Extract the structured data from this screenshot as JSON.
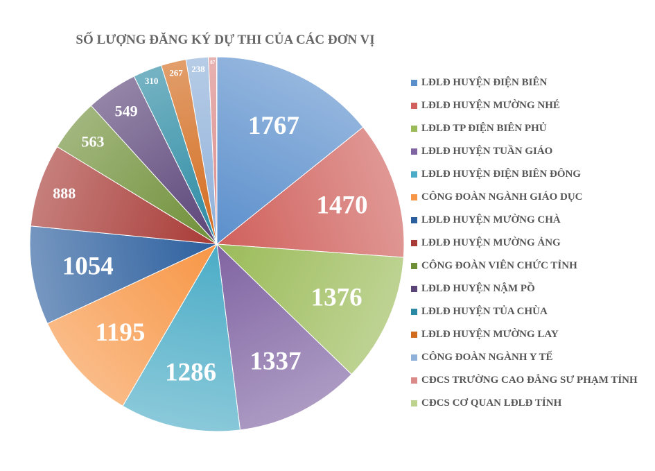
{
  "chart_data": {
    "type": "pie",
    "title": "SỐ LƯỢNG ĐĂNG KÝ DỰ THI CỦA CÁC ĐƠN VỊ",
    "legend_position": "right",
    "data_labels": "inside",
    "categories": [
      "LĐLĐ HUYỆN ĐIỆN BIÊN",
      "LĐLĐ HUYỆN MƯỜNG NHÉ",
      "LĐLĐ TP ĐIỆN BIÊN PHỦ",
      "LĐLĐ HUYỆN TUẦN GIÁO",
      "LĐLĐ HUYỆN ĐIỆN BIÊN ĐÔNG",
      "CÔNG ĐOÀN NGÀNH GIÁO DỤC",
      "LĐLĐ HUYỆN MƯỜNG CHÀ",
      "LĐLĐ HUYỆN MƯỜNG ẢNG",
      "CÔNG ĐOÀN VIÊN CHỨC TỈNH",
      "LĐLĐ HUYỆN NẬM PỒ",
      "LĐLĐ HUYỆN TỦA CHÙA",
      "LĐLĐ HUYỆN MƯỜNG LAY",
      "CÔNG ĐOÀN NGÀNH Y TẾ",
      "CĐCS TRƯỜNG CAO ĐẲNG SƯ PHẠM TỈNH",
      "CĐCS CƠ QUAN LĐLĐ TỈNH"
    ],
    "values": [
      1767,
      1470,
      1376,
      1337,
      1286,
      1195,
      1054,
      888,
      563,
      549,
      310,
      267,
      238,
      87,
      0
    ],
    "labels": [
      "1767",
      "1470",
      "1376",
      "1337",
      "1286",
      "1195",
      "1054",
      "888",
      "563",
      "549",
      "310",
      "267",
      "238",
      "87",
      ""
    ],
    "colors": [
      "#5b8fcc",
      "#d0605c",
      "#9bbb59",
      "#8064a2",
      "#4bacc6",
      "#f79646",
      "#2c5f9e",
      "#a83a36",
      "#6f8f37",
      "#5a4478",
      "#2a8aa3",
      "#d26a1c",
      "#8fb0d9",
      "#da8a88",
      "#bcd38d"
    ]
  }
}
